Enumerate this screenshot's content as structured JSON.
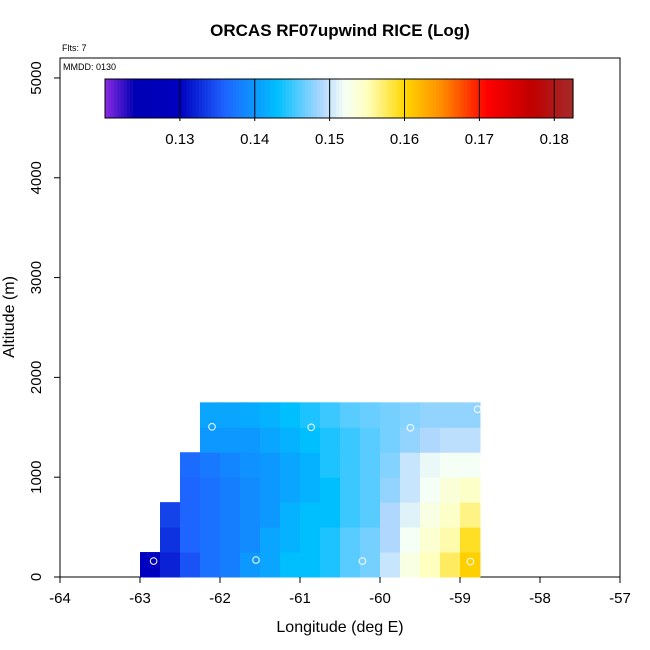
{
  "chart_data": {
    "type": "heatmap",
    "title": "ORCAS RF07upwind RICE (Log)",
    "flights_note": "Flts: 7",
    "date_note": "MMDD: 0130",
    "xlabel": "Longitude (deg E)",
    "ylabel": "Altitude (m)",
    "xlim": [
      -64,
      -57
    ],
    "ylim": [
      0,
      5200
    ],
    "x_ticks": [
      -64,
      -63,
      -62,
      -61,
      -60,
      -59,
      -58,
      -57
    ],
    "x_tick_labels": [
      "-64",
      "-63",
      "-62",
      "-61",
      "-60",
      "-59",
      "-58",
      "-57"
    ],
    "y_ticks": [
      0,
      1000,
      2000,
      3000,
      4000,
      5000
    ],
    "y_tick_labels": [
      "0",
      "1000",
      "2000",
      "3000",
      "4000",
      "5000"
    ],
    "colorbar": {
      "range": [
        0.12,
        0.1825
      ],
      "ticks": [
        0.13,
        0.14,
        0.15,
        0.16,
        0.17,
        0.18
      ],
      "tick_labels": [
        "0.13",
        "0.14",
        "0.15",
        "0.16",
        "0.17",
        "0.18"
      ],
      "stops": [
        {
          "v": 0.12,
          "c": "#8a2be2"
        },
        {
          "v": 0.124,
          "c": "#0000b4"
        },
        {
          "v": 0.13,
          "c": "#0000c0"
        },
        {
          "v": 0.136,
          "c": "#1e64ff"
        },
        {
          "v": 0.143,
          "c": "#00bfff"
        },
        {
          "v": 0.149,
          "c": "#b0d8ff"
        },
        {
          "v": 0.152,
          "c": "#f5fff5"
        },
        {
          "v": 0.155,
          "c": "#ffffbf"
        },
        {
          "v": 0.16,
          "c": "#ffd700"
        },
        {
          "v": 0.165,
          "c": "#ff8c00"
        },
        {
          "v": 0.171,
          "c": "#ff0000"
        },
        {
          "v": 0.177,
          "c": "#c00000"
        },
        {
          "v": 0.1825,
          "c": "#a52a2a"
        }
      ]
    },
    "cell_width_deg": 0.25,
    "cell_height_m": 250,
    "x_centers": [
      -62.875,
      -62.625,
      -62.375,
      -62.125,
      -61.875,
      -61.625,
      -61.375,
      -61.125,
      -60.875,
      -60.625,
      -60.375,
      -60.125,
      -59.875,
      -59.625,
      -59.375,
      -59.125,
      -58.875
    ],
    "y_centers": [
      125,
      375,
      625,
      875,
      1125,
      1375,
      1625
    ],
    "values": [
      [
        0.13,
        0.132,
        0.135,
        0.137,
        0.138,
        0.14,
        0.141,
        0.143,
        0.143,
        0.144,
        0.146,
        0.147,
        0.15,
        0.153,
        0.155,
        0.1575,
        0.1605
      ],
      [
        null,
        0.133,
        0.136,
        0.137,
        0.138,
        0.139,
        0.141,
        0.142,
        0.143,
        0.144,
        0.146,
        0.147,
        0.149,
        0.152,
        0.154,
        0.1555,
        0.159
      ],
      [
        null,
        0.134,
        0.136,
        0.137,
        0.138,
        0.139,
        0.14,
        0.142,
        0.143,
        0.143,
        0.145,
        0.146,
        0.149,
        0.151,
        0.153,
        0.1545,
        0.1565
      ],
      [
        null,
        null,
        0.136,
        0.137,
        0.138,
        0.139,
        0.14,
        0.141,
        0.142,
        0.143,
        0.145,
        0.146,
        0.148,
        0.15,
        0.152,
        0.1535,
        0.1545
      ],
      [
        null,
        null,
        0.1365,
        0.1375,
        0.1385,
        0.1395,
        0.14,
        0.141,
        0.142,
        0.144,
        0.145,
        0.146,
        0.1475,
        0.15,
        0.1515,
        0.152,
        0.152
      ],
      [
        null,
        null,
        null,
        0.14,
        0.14,
        0.14,
        0.141,
        0.142,
        0.143,
        0.144,
        0.145,
        0.146,
        0.147,
        0.148,
        0.149,
        0.1495,
        0.1495
      ],
      [
        null,
        null,
        null,
        0.141,
        0.141,
        0.1415,
        0.142,
        0.143,
        0.144,
        0.145,
        0.146,
        0.1465,
        0.147,
        0.1475,
        0.148,
        0.148,
        0.148
      ]
    ],
    "flight_points": [
      {
        "x": -62.83,
        "y": 160
      },
      {
        "x": -61.55,
        "y": 170
      },
      {
        "x": -60.22,
        "y": 160
      },
      {
        "x": -58.87,
        "y": 155
      },
      {
        "x": -62.1,
        "y": 1505
      },
      {
        "x": -60.86,
        "y": 1500
      },
      {
        "x": -59.62,
        "y": 1495
      },
      {
        "x": -58.78,
        "y": 1680
      }
    ]
  }
}
